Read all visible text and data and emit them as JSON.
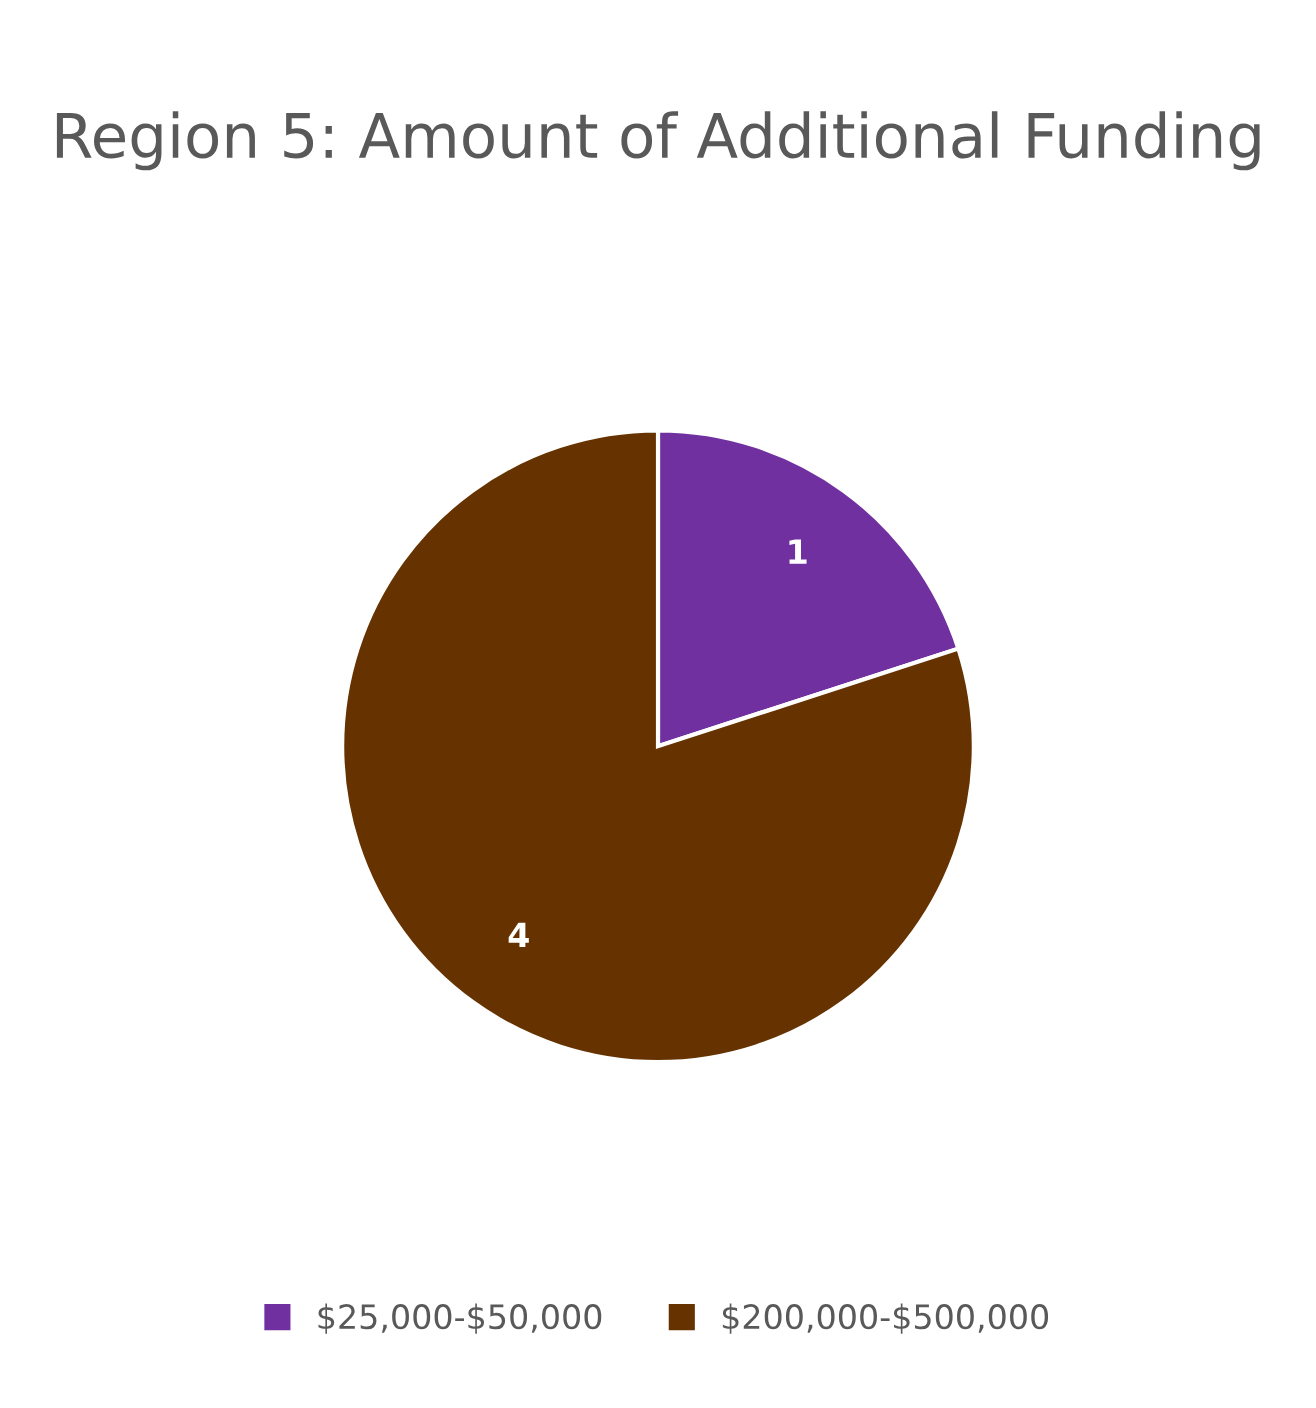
{
  "chart_data": {
    "type": "pie",
    "title": "Region 5: Amount of Additional Funding",
    "categories": [
      "$25,000-$50,000",
      "$200,000-$500,000"
    ],
    "values": [
      1,
      4
    ],
    "colors": [
      "#7030a0",
      "#663300"
    ],
    "data_labels": true,
    "legend": "bottom"
  }
}
